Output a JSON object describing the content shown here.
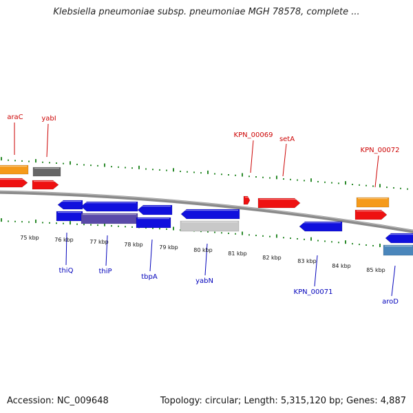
{
  "title": "Klebsiella pneumoniae subsp. pneumoniae MGH 78578, complete ...",
  "footer": {
    "accession": "Accession: NC_009648",
    "summary": "Topology: circular; Length: 5,315,120 bp; Genes: 4,887"
  },
  "colors": {
    "forward_red": "#ee1111",
    "reverse_blue": "#1010dd",
    "orange": "#f59a1a",
    "dark_grey": "#666666",
    "light_grey": "#c8c8c8",
    "steel_blue": "#4a86bb",
    "purple": "#5a4aa8",
    "tick_green": "#2a8a2a",
    "forward_label": "#cc0000",
    "reverse_label": "#0000bb"
  },
  "scale_labels": [
    "75 kbp",
    "76 kbp",
    "77 kbp",
    "78 kbp",
    "79 kbp",
    "80 kbp",
    "81 kbp",
    "82 kbp",
    "83 kbp",
    "84 kbp",
    "85 kbp"
  ],
  "forward_genes": [
    "araC",
    "yabI",
    "KPN_00069",
    "setA",
    "KPN_00072"
  ],
  "reverse_genes": [
    "thiQ",
    "thiP",
    "tbpA",
    "yabN",
    "KPN_00071",
    "aroD"
  ]
}
